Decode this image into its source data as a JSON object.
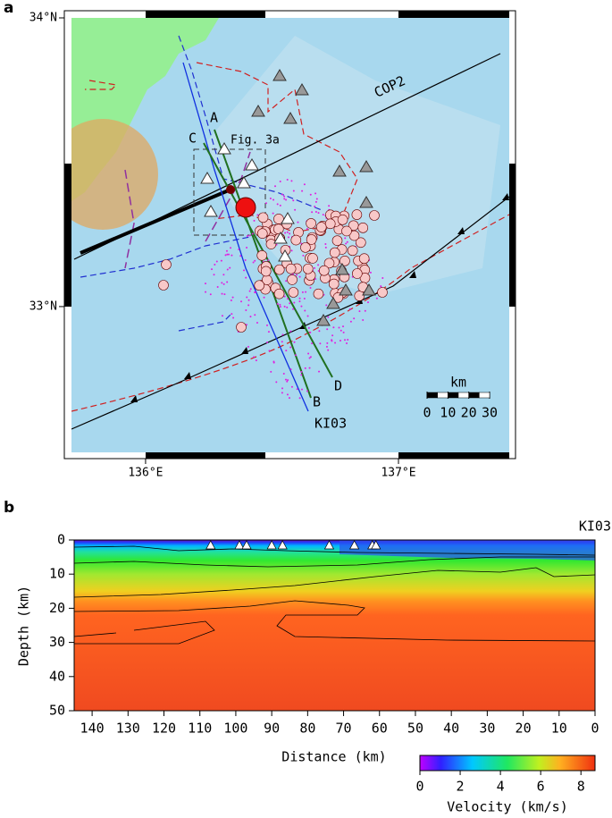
{
  "panel_a": {
    "label": "a",
    "lat_ticks": [
      {
        "value": 34,
        "label": "34°N"
      },
      {
        "value": 33,
        "label": "33°N"
      }
    ],
    "lon_ticks": [
      {
        "value": 136,
        "label": "136°E"
      },
      {
        "value": 137,
        "label": "137°E"
      }
    ],
    "lon_range": [
      135.707,
      137.438
    ],
    "lat_range": [
      32.495,
      34
    ],
    "annotations": {
      "a": "A",
      "b": "B",
      "c": "C",
      "d": "D",
      "cop2": "COP2",
      "box": "Fig. 3a",
      "ki03": "KI03"
    },
    "scale_bar": {
      "unit": "km",
      "ticks": [
        0,
        10,
        20,
        30
      ]
    }
  },
  "panel_b": {
    "label": "b",
    "title": "KI03",
    "xlabel": "Distance (km)",
    "ylabel": "Depth (km)",
    "xlim": [
      145,
      0
    ],
    "ylim": [
      0,
      50
    ],
    "xticks": [
      140,
      130,
      120,
      110,
      100,
      90,
      80,
      70,
      60,
      50,
      40,
      30,
      20,
      10,
      0
    ],
    "yticks": [
      0,
      10,
      20,
      30,
      40,
      50
    ],
    "stations": [
      107,
      99,
      97,
      90,
      87,
      74,
      67,
      62,
      61
    ]
  },
  "colorbar": {
    "label": "Velocity (km/s)",
    "lim": [
      0,
      8.7
    ],
    "ticks": [
      0,
      2,
      4,
      6,
      8
    ]
  }
}
